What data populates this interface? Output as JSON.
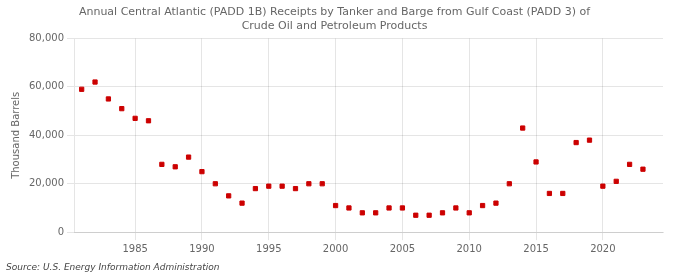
{
  "chart_data": {
    "type": "scatter",
    "title": "Annual Central Atlantic (PADD 1B) Receipts by Tanker and Barge from Gulf Coast (PADD 3) of\nCrude Oil and Petroleum Products",
    "ylabel": "Thousand Barrels",
    "annotations": [
      "Source: U.S. Energy Information Administration"
    ],
    "color": "#cc0000",
    "marker": "square",
    "grid": true,
    "x": [
      1981,
      1982,
      1983,
      1984,
      1985,
      1986,
      1987,
      1988,
      1989,
      1990,
      1991,
      1992,
      1993,
      1994,
      1995,
      1996,
      1997,
      1998,
      1999,
      2000,
      2001,
      2002,
      2003,
      2004,
      2005,
      2006,
      2007,
      2008,
      2009,
      2010,
      2011,
      2012,
      2013,
      2014,
      2015,
      2016,
      2017,
      2018,
      2019,
      2020,
      2021,
      2022,
      2023
    ],
    "values": [
      59000,
      62000,
      55000,
      51000,
      47000,
      46000,
      28000,
      27000,
      31000,
      25000,
      20000,
      15000,
      12000,
      18000,
      19000,
      19000,
      18000,
      20000,
      20000,
      11000,
      10000,
      8000,
      8000,
      10000,
      10000,
      7000,
      7000,
      8000,
      10000,
      8000,
      11000,
      12000,
      20000,
      43000,
      29000,
      16000,
      16000,
      37000,
      38000,
      19000,
      21000,
      28000,
      26000
    ],
    "xlim": [
      1980.5,
      2024.5
    ],
    "xticks": [
      1985,
      1990,
      1995,
      2000,
      2005,
      2010,
      2015,
      2020
    ],
    "ylim": [
      0,
      80000
    ],
    "yticks": [
      0,
      {
        "value": 20000,
        "label": "20,000"
      },
      {
        "value": 40000,
        "label": "40,000"
      },
      {
        "value": 60000,
        "label": "60,000"
      },
      {
        "value": 80000,
        "label": "80,000"
      }
    ]
  }
}
